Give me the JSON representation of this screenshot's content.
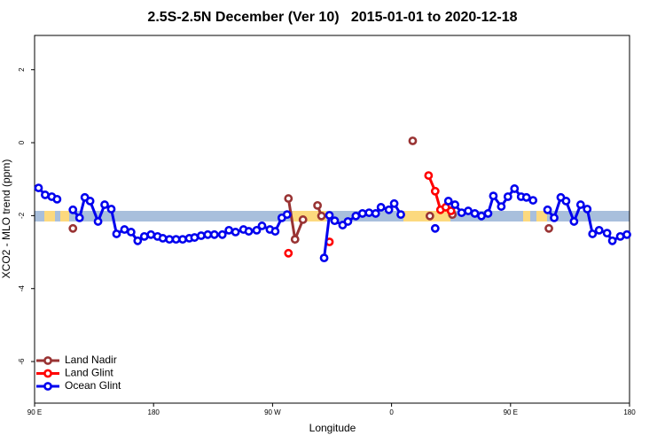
{
  "chart_data": {
    "type": "line",
    "title": "2.5S-2.5N December (Ver 10)   2015-01-01 to 2020-12-18",
    "x_label": "Longitude",
    "y_label": "XCO2 - MLO trend (ppm)",
    "xlim": [
      90,
      540
    ],
    "ylim": [
      -7.14,
      2.94
    ],
    "xticks": [
      {
        "value": 90,
        "label": "90 E"
      },
      180,
      {
        "value": 270,
        "label": "90 W"
      },
      {
        "value": 360,
        "label": "0"
      },
      {
        "value": 450,
        "label": "90 E"
      },
      {
        "value": 540,
        "label": "180"
      }
    ],
    "yticks": [
      -6,
      -4,
      -2,
      0,
      2
    ],
    "legend": "bottomleft",
    "series": [
      {
        "name": "Land Nadir",
        "color": "#993333",
        "x": [
          119,
          null,
          282,
          287,
          293,
          null,
          304,
          307,
          null,
          376,
          null,
          389,
          null,
          406,
          null,
          479
        ],
        "values": [
          -2.35,
          null,
          -1.53,
          -2.65,
          -2.11,
          null,
          -1.72,
          -2.01,
          null,
          0.05,
          null,
          -2.01,
          null,
          -1.97,
          null,
          -2.35
        ]
      },
      {
        "name": "Land Glint",
        "color": "#ff0000",
        "x": [
          282,
          null,
          313,
          null,
          388,
          393,
          397,
          401,
          405
        ],
        "values": [
          -3.03,
          null,
          -2.72,
          null,
          -0.9,
          -1.33,
          -1.84,
          -1.77,
          -1.87
        ]
      },
      {
        "name": "Ocean Glint",
        "color": "#0000ee",
        "x": [
          93,
          98,
          103,
          107,
          null,
          119,
          124,
          128,
          132,
          138,
          143,
          148,
          152,
          158,
          163,
          168,
          173,
          178,
          183,
          187,
          192,
          197,
          202,
          207,
          211,
          216,
          221,
          226,
          232,
          237,
          242,
          248,
          252,
          258,
          262,
          268,
          272,
          277,
          281,
          null,
          309,
          313,
          317,
          323,
          327,
          333,
          338,
          343,
          348,
          352,
          358,
          362,
          367,
          null,
          393,
          null,
          403,
          408,
          413,
          418,
          423,
          428,
          433,
          437,
          443,
          448,
          453,
          458,
          462,
          467,
          null,
          478,
          483,
          488,
          492,
          498,
          503,
          508,
          512,
          517,
          523,
          527,
          533,
          538
        ],
        "values": [
          -1.24,
          -1.43,
          -1.48,
          -1.55,
          null,
          -1.84,
          -2.06,
          -1.5,
          -1.6,
          -2.16,
          -1.7,
          -1.82,
          -2.5,
          -2.38,
          -2.45,
          -2.69,
          -2.57,
          -2.52,
          -2.57,
          -2.62,
          -2.65,
          -2.65,
          -2.65,
          -2.62,
          -2.6,
          -2.55,
          -2.52,
          -2.52,
          -2.52,
          -2.4,
          -2.45,
          -2.38,
          -2.43,
          -2.4,
          -2.28,
          -2.38,
          -2.43,
          -2.06,
          -1.97,
          null,
          -3.16,
          -1.99,
          -2.14,
          -2.26,
          -2.16,
          -2.01,
          -1.94,
          -1.92,
          -1.94,
          -1.77,
          -1.84,
          -1.67,
          -1.97,
          null,
          -2.35,
          null,
          -1.6,
          -1.7,
          -1.92,
          -1.87,
          -1.94,
          -2.01,
          -1.94,
          -1.46,
          -1.75,
          -1.48,
          -1.26,
          -1.48,
          -1.5,
          -1.58,
          null,
          -1.84,
          -2.06,
          -1.5,
          -1.6,
          -2.16,
          -1.7,
          -1.82,
          -2.5,
          -2.4,
          -2.48,
          -2.69,
          -2.57,
          -2.52
        ]
      }
    ]
  }
}
